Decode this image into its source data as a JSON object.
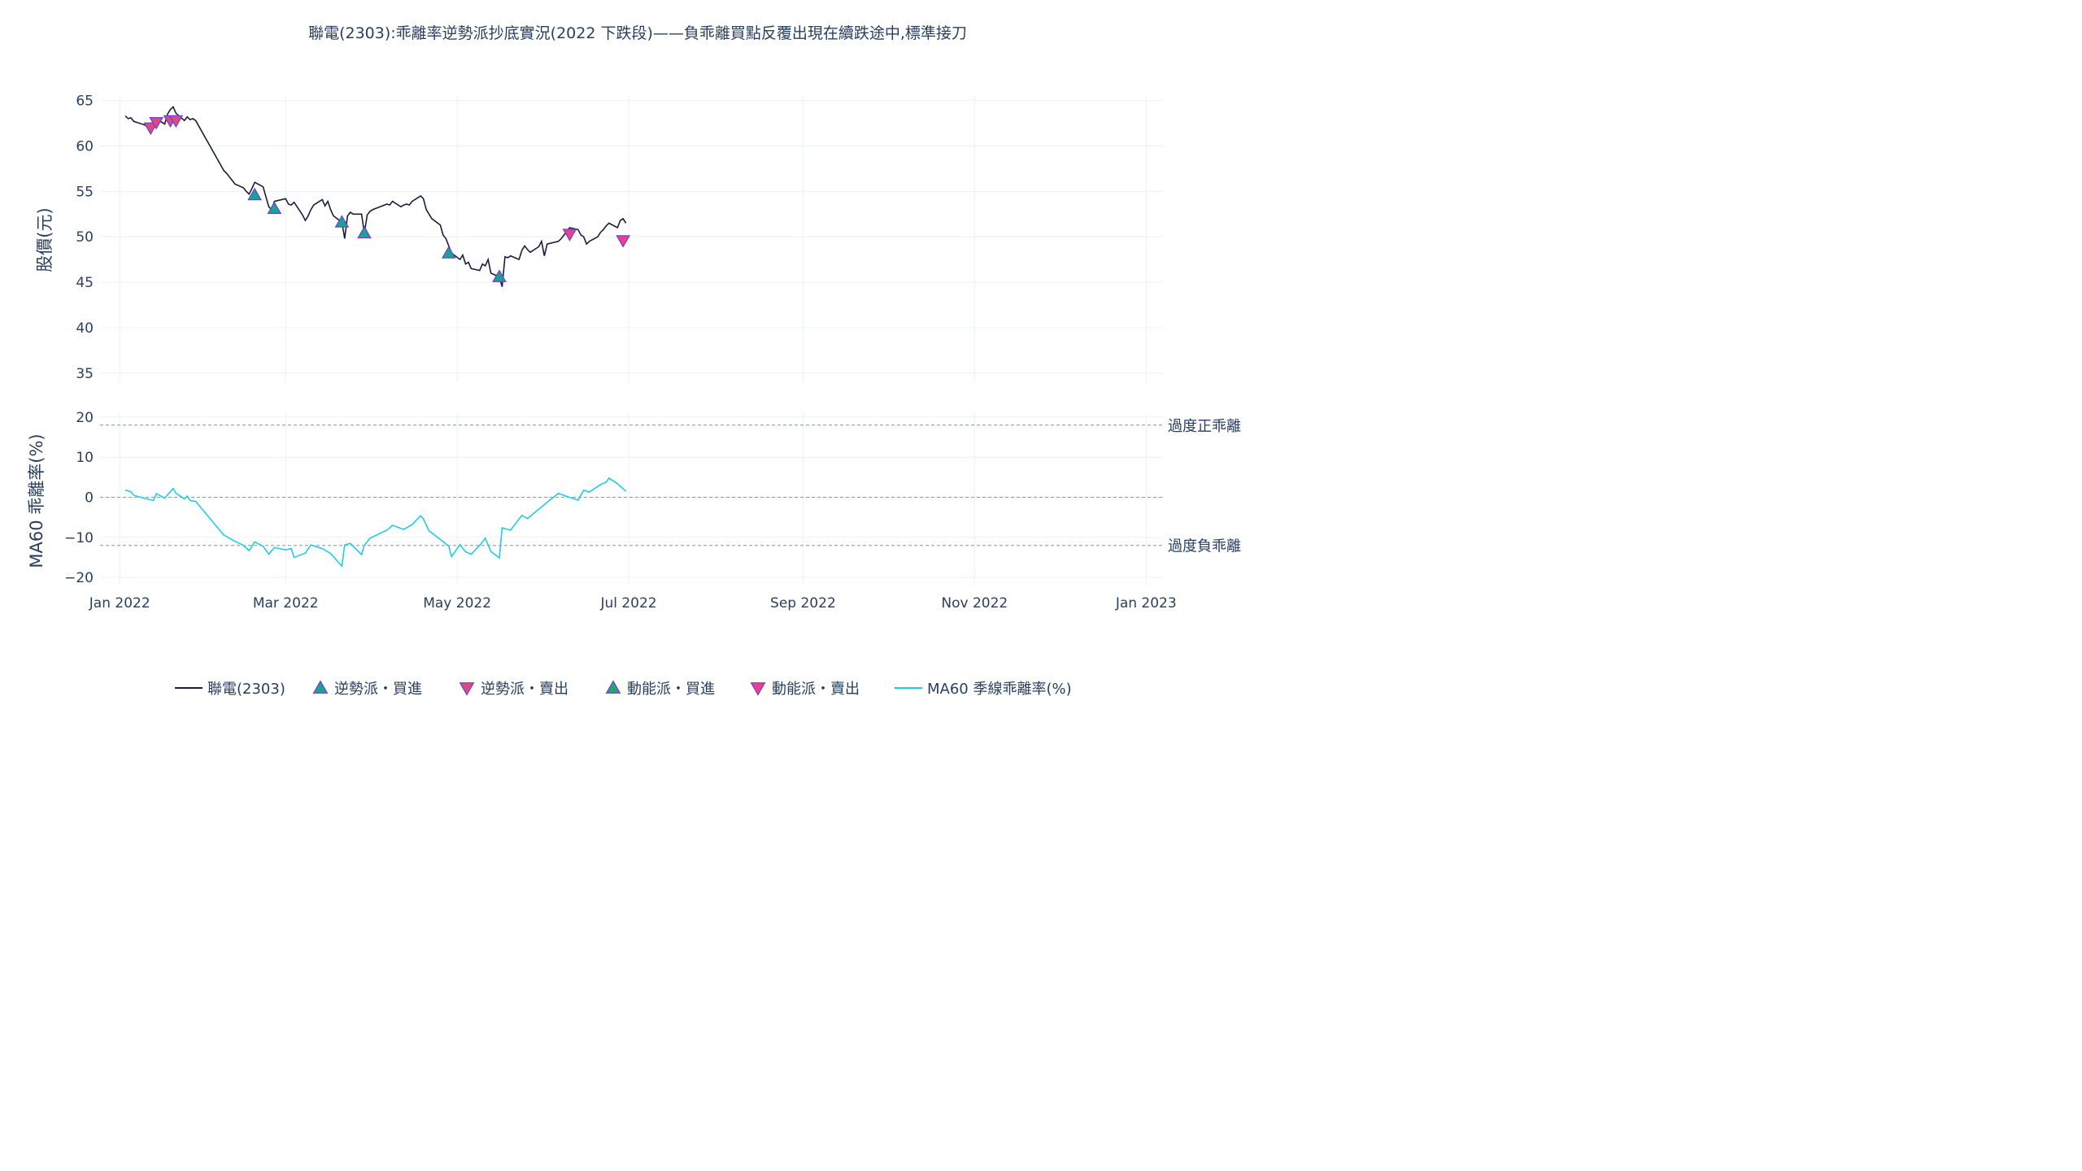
{
  "chart_data": {
    "type": "line",
    "title": "聯電(2303):乖離率逆勢派抄底實況(2022 下跌段)——負乖離買點反覆出現在續跌途中,標準接刀",
    "x_tick_labels": [
      "Jan 2022",
      "Mar 2022",
      "May 2022",
      "Jul 2022",
      "Sep 2022",
      "Nov 2022",
      "Jan 2023"
    ],
    "x_tick_dates": [
      "2022-01-01",
      "2022-03-01",
      "2022-05-01",
      "2022-07-01",
      "2022-09-01",
      "2022-11-01",
      "2023-01-01"
    ],
    "xlim": [
      "2021-12-25",
      "2023-01-07"
    ],
    "grid": true,
    "legend_placement": "bottom-center",
    "colors": {
      "price": "#1b1e3b",
      "bias": "#22cbe6",
      "contrarian_buy": "#1aa391",
      "contrarian_sell": "#d94c7e",
      "momentum_buy": "#29a372",
      "momentum_sell": "#e8428c",
      "marker_edge": "#6a3fdc",
      "ref_line": "#8a8fa8"
    },
    "price_panel": {
      "ylabel": "股價(元)",
      "ylim": [
        34,
        65.5
      ],
      "yticks": [
        35,
        40,
        45,
        50,
        55,
        60,
        65
      ],
      "series": [
        {
          "name": "聯電(2303)",
          "points": [
            [
              "2022-01-03",
              63.3
            ],
            [
              "2022-01-04",
              63.0
            ],
            [
              "2022-01-05",
              63.1
            ],
            [
              "2022-01-06",
              62.7
            ],
            [
              "2022-01-07",
              62.6
            ],
            [
              "2022-01-10",
              62.3
            ],
            [
              "2022-01-11",
              62.0
            ],
            [
              "2022-01-12",
              62.5
            ],
            [
              "2022-01-13",
              62.1
            ],
            [
              "2022-01-14",
              63.0
            ],
            [
              "2022-01-17",
              62.4
            ],
            [
              "2022-01-18",
              63.5
            ],
            [
              "2022-01-19",
              64.0
            ],
            [
              "2022-01-20",
              64.3
            ],
            [
              "2022-01-21",
              63.6
            ],
            [
              "2022-01-24",
              62.8
            ],
            [
              "2022-01-25",
              63.2
            ],
            [
              "2022-01-26",
              62.9
            ],
            [
              "2022-01-27",
              63.0
            ],
            [
              "2022-01-28",
              62.8
            ],
            [
              "2022-02-07",
              57.3
            ],
            [
              "2022-02-08",
              57.0
            ],
            [
              "2022-02-09",
              56.6
            ],
            [
              "2022-02-10",
              56.2
            ],
            [
              "2022-02-11",
              55.8
            ],
            [
              "2022-02-14",
              55.4
            ],
            [
              "2022-02-15",
              55.0
            ],
            [
              "2022-02-16",
              54.7
            ],
            [
              "2022-02-17",
              55.3
            ],
            [
              "2022-02-18",
              56.0
            ],
            [
              "2022-02-21",
              55.5
            ],
            [
              "2022-02-22",
              54.4
            ],
            [
              "2022-02-23",
              53.3
            ],
            [
              "2022-02-24",
              53.0
            ],
            [
              "2022-02-25",
              53.9
            ],
            [
              "2022-03-01",
              54.2
            ],
            [
              "2022-03-02",
              53.6
            ],
            [
              "2022-03-03",
              53.5
            ],
            [
              "2022-03-04",
              53.8
            ],
            [
              "2022-03-07",
              52.4
            ],
            [
              "2022-03-08",
              51.8
            ],
            [
              "2022-03-09",
              52.3
            ],
            [
              "2022-03-10",
              53.0
            ],
            [
              "2022-03-11",
              53.5
            ],
            [
              "2022-03-14",
              54.1
            ],
            [
              "2022-03-15",
              53.4
            ],
            [
              "2022-03-16",
              53.9
            ],
            [
              "2022-03-17",
              53.0
            ],
            [
              "2022-03-18",
              52.3
            ],
            [
              "2022-03-21",
              51.6
            ],
            [
              "2022-03-22",
              49.8
            ],
            [
              "2022-03-23",
              52.3
            ],
            [
              "2022-03-24",
              52.7
            ],
            [
              "2022-03-25",
              52.5
            ],
            [
              "2022-03-28",
              52.5
            ],
            [
              "2022-03-29",
              50.4
            ],
            [
              "2022-03-30",
              52.4
            ],
            [
              "2022-03-31",
              52.8
            ],
            [
              "2022-04-01",
              53.0
            ],
            [
              "2022-04-06",
              53.6
            ],
            [
              "2022-04-07",
              53.5
            ],
            [
              "2022-04-08",
              53.9
            ],
            [
              "2022-04-11",
              53.3
            ],
            [
              "2022-04-12",
              53.5
            ],
            [
              "2022-04-13",
              53.6
            ],
            [
              "2022-04-14",
              53.5
            ],
            [
              "2022-04-15",
              53.9
            ],
            [
              "2022-04-18",
              54.5
            ],
            [
              "2022-04-19",
              54.2
            ],
            [
              "2022-04-20",
              53.0
            ],
            [
              "2022-04-21",
              52.5
            ],
            [
              "2022-04-22",
              52.0
            ],
            [
              "2022-04-25",
              51.3
            ],
            [
              "2022-04-26",
              50.2
            ],
            [
              "2022-04-27",
              49.8
            ],
            [
              "2022-04-28",
              49.0
            ],
            [
              "2022-04-29",
              48.2
            ],
            [
              "2022-05-02",
              47.5
            ],
            [
              "2022-05-03",
              48.0
            ],
            [
              "2022-05-04",
              47.0
            ],
            [
              "2022-05-05",
              47.2
            ],
            [
              "2022-05-06",
              46.5
            ],
            [
              "2022-05-09",
              46.3
            ],
            [
              "2022-05-10",
              47.0
            ],
            [
              "2022-05-11",
              46.8
            ],
            [
              "2022-05-12",
              47.5
            ],
            [
              "2022-05-13",
              46.0
            ],
            [
              "2022-05-16",
              45.6
            ],
            [
              "2022-05-17",
              44.5
            ],
            [
              "2022-05-18",
              47.8
            ],
            [
              "2022-05-19",
              47.7
            ],
            [
              "2022-05-20",
              47.9
            ],
            [
              "2022-05-23",
              47.5
            ],
            [
              "2022-05-24",
              48.5
            ],
            [
              "2022-05-25",
              49.0
            ],
            [
              "2022-05-26",
              48.6
            ],
            [
              "2022-05-27",
              48.3
            ],
            [
              "2022-05-30",
              48.9
            ],
            [
              "2022-05-31",
              49.5
            ],
            [
              "2022-06-01",
              47.9
            ],
            [
              "2022-06-02",
              49.2
            ],
            [
              "2022-06-06",
              49.5
            ],
            [
              "2022-06-07",
              49.8
            ],
            [
              "2022-06-08",
              50.2
            ],
            [
              "2022-06-09",
              50.6
            ],
            [
              "2022-06-10",
              51.0
            ],
            [
              "2022-06-13",
              50.8
            ],
            [
              "2022-06-14",
              50.2
            ],
            [
              "2022-06-15",
              50.0
            ],
            [
              "2022-06-16",
              49.2
            ],
            [
              "2022-06-17",
              49.5
            ],
            [
              "2022-06-20",
              50.0
            ],
            [
              "2022-06-21",
              50.5
            ],
            [
              "2022-06-22",
              50.8
            ],
            [
              "2022-06-23",
              51.2
            ],
            [
              "2022-06-24",
              51.5
            ],
            [
              "2022-06-27",
              51.0
            ],
            [
              "2022-06-28",
              51.8
            ],
            [
              "2022-06-29",
              52.0
            ],
            [
              "2022-06-30",
              51.5
            ]
          ]
        }
      ]
    },
    "bias_panel": {
      "ylabel": "MA60 乖離率(%)",
      "ylim": [
        -22,
        21
      ],
      "yticks": [
        -20,
        -10,
        0,
        10,
        20
      ],
      "reference_lines": [
        {
          "y": 18,
          "label": "過度正乖離"
        },
        {
          "y": 0,
          "label": ""
        },
        {
          "y": -12,
          "label": "過度負乖離"
        }
      ],
      "series": [
        {
          "name": "MA60 季線乖離率(%)",
          "points": [
            [
              "2022-01-03",
              1.8
            ],
            [
              "2022-01-05",
              1.4
            ],
            [
              "2022-01-06",
              0.5
            ],
            [
              "2022-01-10",
              -0.3
            ],
            [
              "2022-01-13",
              -0.8
            ],
            [
              "2022-01-14",
              0.9
            ],
            [
              "2022-01-17",
              -0.2
            ],
            [
              "2022-01-19",
              1.4
            ],
            [
              "2022-01-20",
              2.2
            ],
            [
              "2022-01-21",
              1.0
            ],
            [
              "2022-01-24",
              -0.4
            ],
            [
              "2022-01-25",
              0.3
            ],
            [
              "2022-01-26",
              -0.8
            ],
            [
              "2022-01-28",
              -1.0
            ],
            [
              "2022-02-07",
              -9.4
            ],
            [
              "2022-02-10",
              -10.6
            ],
            [
              "2022-02-14",
              -12.0
            ],
            [
              "2022-02-16",
              -13.3
            ],
            [
              "2022-02-18",
              -11.1
            ],
            [
              "2022-02-21",
              -12.2
            ],
            [
              "2022-02-23",
              -14.2
            ],
            [
              "2022-02-25",
              -12.5
            ],
            [
              "2022-03-01",
              -13.1
            ],
            [
              "2022-03-03",
              -12.8
            ],
            [
              "2022-03-04",
              -15.0
            ],
            [
              "2022-03-08",
              -13.9
            ],
            [
              "2022-03-10",
              -11.9
            ],
            [
              "2022-03-14",
              -12.8
            ],
            [
              "2022-03-16",
              -13.6
            ],
            [
              "2022-03-17",
              -14.0
            ],
            [
              "2022-03-21",
              -17.2
            ],
            [
              "2022-03-22",
              -11.9
            ],
            [
              "2022-03-24",
              -11.5
            ],
            [
              "2022-03-28",
              -14.3
            ],
            [
              "2022-03-29",
              -12.0
            ],
            [
              "2022-03-31",
              -10.2
            ],
            [
              "2022-04-06",
              -8.2
            ],
            [
              "2022-04-08",
              -7.0
            ],
            [
              "2022-04-12",
              -8.0
            ],
            [
              "2022-04-15",
              -6.8
            ],
            [
              "2022-04-18",
              -4.6
            ],
            [
              "2022-04-19",
              -5.4
            ],
            [
              "2022-04-21",
              -8.4
            ],
            [
              "2022-04-25",
              -10.5
            ],
            [
              "2022-04-28",
              -12.2
            ],
            [
              "2022-04-29",
              -14.8
            ],
            [
              "2022-05-02",
              -11.8
            ],
            [
              "2022-05-04",
              -13.6
            ],
            [
              "2022-05-06",
              -14.2
            ],
            [
              "2022-05-09",
              -12.0
            ],
            [
              "2022-05-11",
              -10.2
            ],
            [
              "2022-05-13",
              -13.5
            ],
            [
              "2022-05-16",
              -15.1
            ],
            [
              "2022-05-17",
              -7.6
            ],
            [
              "2022-05-20",
              -8.2
            ],
            [
              "2022-05-24",
              -4.5
            ],
            [
              "2022-05-26",
              -5.3
            ],
            [
              "2022-05-31",
              -2.4
            ],
            [
              "2022-06-02",
              -1.2
            ],
            [
              "2022-06-06",
              1.0
            ],
            [
              "2022-06-09",
              0.2
            ],
            [
              "2022-06-13",
              -0.7
            ],
            [
              "2022-06-15",
              1.8
            ],
            [
              "2022-06-17",
              1.3
            ],
            [
              "2022-06-21",
              3.2
            ],
            [
              "2022-06-23",
              3.8
            ],
            [
              "2022-06-24",
              4.8
            ],
            [
              "2022-06-27",
              3.4
            ],
            [
              "2022-06-30",
              1.5
            ]
          ]
        }
      ]
    },
    "signal_series": [
      {
        "name": "逆勢派・買進",
        "marker": "triangle-up",
        "panel": "price",
        "points": [
          [
            "2022-02-18",
            54.6
          ],
          [
            "2022-02-25",
            53.1
          ],
          [
            "2022-03-21",
            51.6
          ],
          [
            "2022-03-29",
            50.4
          ],
          [
            "2022-04-28",
            48.2
          ],
          [
            "2022-05-16",
            45.6
          ]
        ]
      },
      {
        "name": "逆勢派・賣出",
        "marker": "triangle-down",
        "panel": "price",
        "points": [
          [
            "2022-01-12",
            62.0
          ],
          [
            "2022-01-14",
            62.6
          ],
          [
            "2022-01-19",
            62.8
          ],
          [
            "2022-01-21",
            62.8
          ]
        ]
      },
      {
        "name": "動能派・買進",
        "marker": "triangle-up",
        "panel": "price",
        "points": []
      },
      {
        "name": "動能派・賣出",
        "marker": "triangle-down",
        "panel": "price",
        "points": [
          [
            "2022-06-10",
            50.3
          ],
          [
            "2022-06-29",
            49.6
          ]
        ]
      }
    ]
  }
}
